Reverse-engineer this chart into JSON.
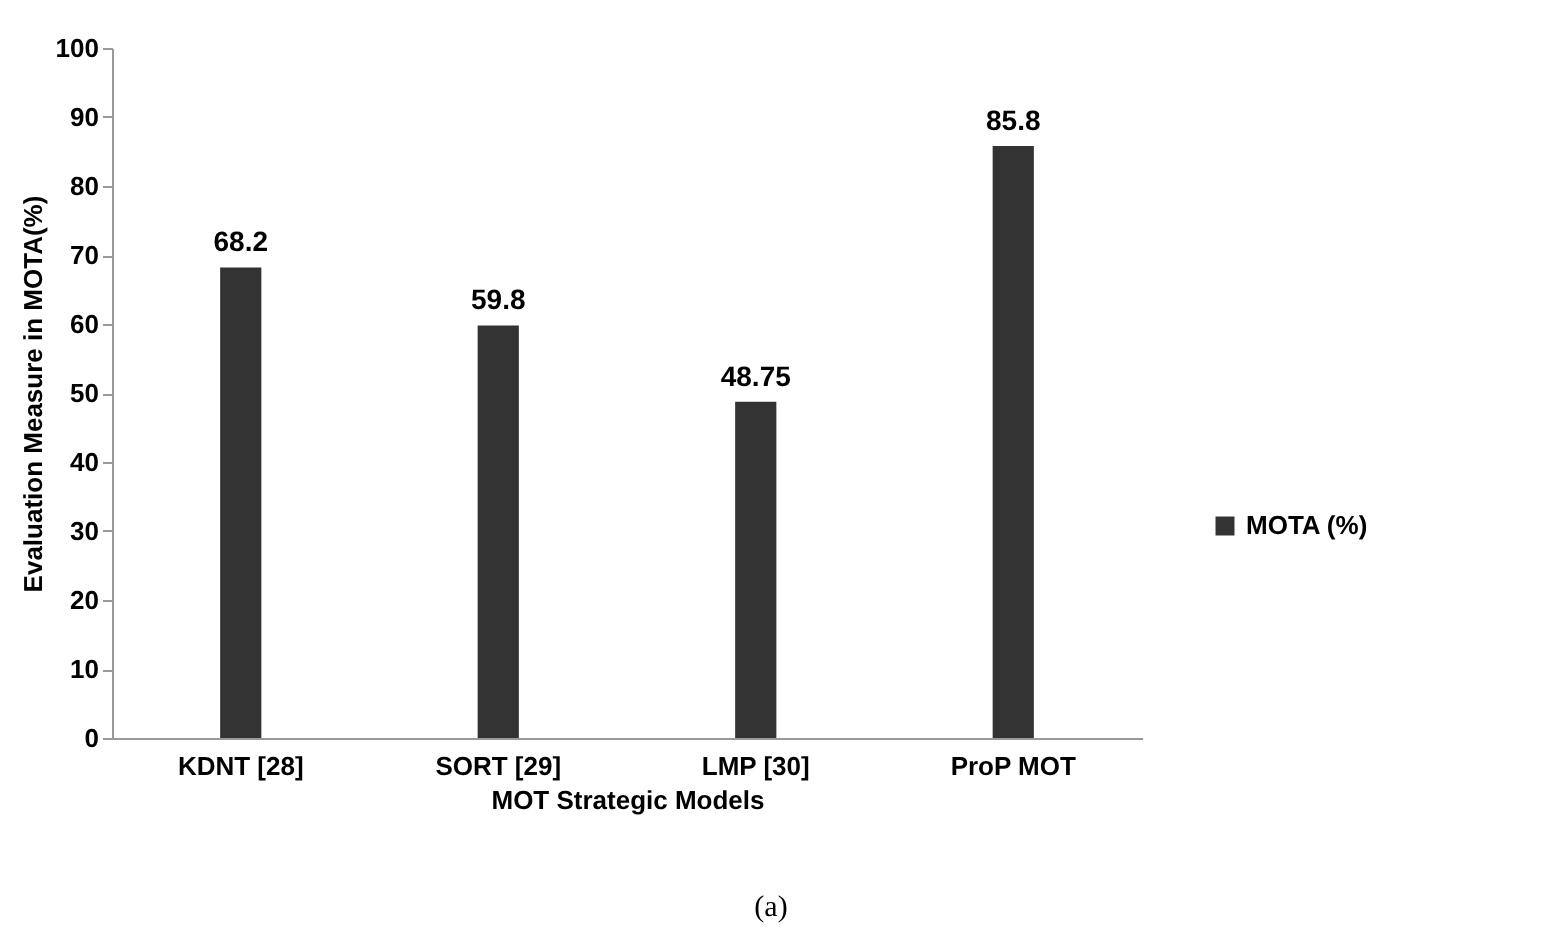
{
  "chart_data": {
    "type": "bar",
    "xlabel": "MOT Strategic Models",
    "ylabel": "Evaluation Measure in MOTA(%)",
    "categories": [
      "KDNT [28]",
      "SORT [29]",
      "LMP [30]",
      "ProP MOT"
    ],
    "series": [
      {
        "name": "MOTA (%)",
        "color": "#333333",
        "values": [
          68.2,
          59.8,
          48.75,
          85.8
        ]
      }
    ],
    "ylim": [
      0,
      100
    ],
    "yticks": [
      0,
      10,
      20,
      30,
      40,
      50,
      60,
      70,
      80,
      90,
      100
    ],
    "grid": false,
    "legend": "right",
    "data_labels": true,
    "annotations": [
      "(a)"
    ]
  }
}
